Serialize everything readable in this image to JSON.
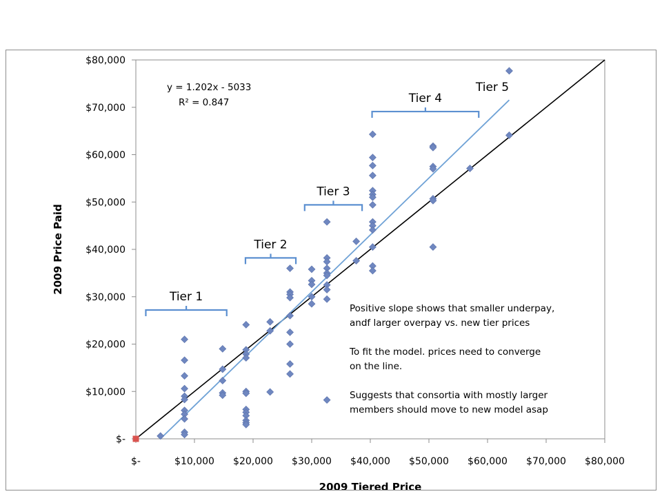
{
  "chart_data": {
    "type": "scatter",
    "xlabel": "2009 Tiered Price",
    "ylabel": "2009 Price Paid",
    "xlim": [
      0,
      80000
    ],
    "ylim": [
      0,
      80000
    ],
    "x_ticks": [
      {
        "value": 0,
        "label": "$-"
      },
      {
        "value": 10000,
        "label": "$10,000"
      },
      {
        "value": 20000,
        "label": "$20,000"
      },
      {
        "value": 30000,
        "label": "$30,000"
      },
      {
        "value": 40000,
        "label": "$40,000"
      },
      {
        "value": 50000,
        "label": "$50,000"
      },
      {
        "value": 60000,
        "label": "$60,000"
      },
      {
        "value": 70000,
        "label": "$70,000"
      },
      {
        "value": 80000,
        "label": "$80,000"
      }
    ],
    "y_ticks": [
      {
        "value": 0,
        "label": "$-"
      },
      {
        "value": 10000,
        "label": "$10,000"
      },
      {
        "value": 20000,
        "label": "$20,000"
      },
      {
        "value": 30000,
        "label": "$30,000"
      },
      {
        "value": 40000,
        "label": "$40,000"
      },
      {
        "value": 50000,
        "label": "$50,000"
      },
      {
        "value": 60000,
        "label": "$60,000"
      },
      {
        "value": 70000,
        "label": "$70,000"
      },
      {
        "value": 80000,
        "label": "$80,000"
      }
    ],
    "grid": false,
    "series": [
      {
        "marker": "diamond",
        "color": "#6f87c0",
        "points": [
          [
            4200,
            600
          ],
          [
            8300,
            21000
          ],
          [
            8300,
            16600
          ],
          [
            8300,
            13300
          ],
          [
            8300,
            10600
          ],
          [
            8300,
            9000
          ],
          [
            8300,
            8300
          ],
          [
            8300,
            6000
          ],
          [
            8300,
            5200
          ],
          [
            8300,
            4200
          ],
          [
            8300,
            1400
          ],
          [
            8300,
            900
          ],
          [
            14800,
            19000
          ],
          [
            14800,
            14700
          ],
          [
            14800,
            12300
          ],
          [
            14800,
            9700
          ],
          [
            14800,
            9200
          ],
          [
            18800,
            24100
          ],
          [
            18800,
            18800
          ],
          [
            18800,
            17900
          ],
          [
            18800,
            17100
          ],
          [
            18800,
            10000
          ],
          [
            18800,
            9600
          ],
          [
            18800,
            6200
          ],
          [
            18800,
            5600
          ],
          [
            18800,
            4900
          ],
          [
            18800,
            3900
          ],
          [
            18800,
            3400
          ],
          [
            18800,
            3000
          ],
          [
            22900,
            24700
          ],
          [
            22900,
            22800
          ],
          [
            22900,
            9900
          ],
          [
            26300,
            36000
          ],
          [
            26300,
            31000
          ],
          [
            26300,
            30500
          ],
          [
            26300,
            29800
          ],
          [
            26300,
            26000
          ],
          [
            26300,
            22500
          ],
          [
            26300,
            20000
          ],
          [
            26300,
            15800
          ],
          [
            26300,
            13700
          ],
          [
            30000,
            35800
          ],
          [
            30000,
            33400
          ],
          [
            30000,
            32600
          ],
          [
            30000,
            30000
          ],
          [
            30000,
            28500
          ],
          [
            32600,
            45800
          ],
          [
            32600,
            38200
          ],
          [
            32600,
            37400
          ],
          [
            32600,
            36000
          ],
          [
            32600,
            35000
          ],
          [
            32600,
            34500
          ],
          [
            32600,
            32500
          ],
          [
            32600,
            31500
          ],
          [
            32600,
            29500
          ],
          [
            32600,
            8200
          ],
          [
            37600,
            41700
          ],
          [
            37600,
            37600
          ],
          [
            40400,
            64300
          ],
          [
            40400,
            59400
          ],
          [
            40400,
            57700
          ],
          [
            40400,
            55600
          ],
          [
            40400,
            52400
          ],
          [
            40400,
            51600
          ],
          [
            40400,
            51000
          ],
          [
            40400,
            49400
          ],
          [
            40400,
            45800
          ],
          [
            40400,
            45000
          ],
          [
            40400,
            44100
          ],
          [
            40400,
            40500
          ],
          [
            40400,
            36500
          ],
          [
            40400,
            35500
          ],
          [
            50700,
            61800
          ],
          [
            50700,
            61500
          ],
          [
            50700,
            57500
          ],
          [
            50700,
            57000
          ],
          [
            50700,
            50700
          ],
          [
            50700,
            50300
          ],
          [
            50700,
            40500
          ],
          [
            57000,
            57100
          ],
          [
            63700,
            77700
          ],
          [
            63700,
            64100
          ]
        ]
      }
    ],
    "origin_marker": {
      "x": 0,
      "y": 0,
      "marker": "square",
      "color": "#d9534f"
    },
    "reference_line": {
      "from": [
        0,
        0
      ],
      "to": [
        80000,
        80000
      ],
      "color": "#000000"
    },
    "trendline": {
      "slope": 1.202,
      "intercept": -5033,
      "x_range": [
        4200,
        63700
      ],
      "color": "#6fa2d6",
      "equation": "y = 1.202x - 5033",
      "r_squared": "R² = 0.847"
    },
    "tier_brackets": [
      {
        "label": "Tier 1",
        "x_start": 1700,
        "x_end": 15500,
        "y": 27200
      },
      {
        "label": "Tier 2",
        "x_start": 18700,
        "x_end": 27300,
        "y": 38200
      },
      {
        "label": "Tier 3",
        "x_start": 28800,
        "x_end": 38600,
        "y": 49400
      },
      {
        "label": "Tier 4",
        "x_start": 40300,
        "x_end": 58500,
        "y": 69100
      }
    ],
    "tier5_label": {
      "label": "Tier 5"
    },
    "annotation_lines": [
      "Positive slope shows that smaller underpay,",
      "andf larger overpay vs. new tier prices",
      "",
      "To fit the model. prices need to converge",
      "on the line.",
      "",
      "Suggests that consortia with mostly larger",
      "members should move to new model asap"
    ]
  }
}
